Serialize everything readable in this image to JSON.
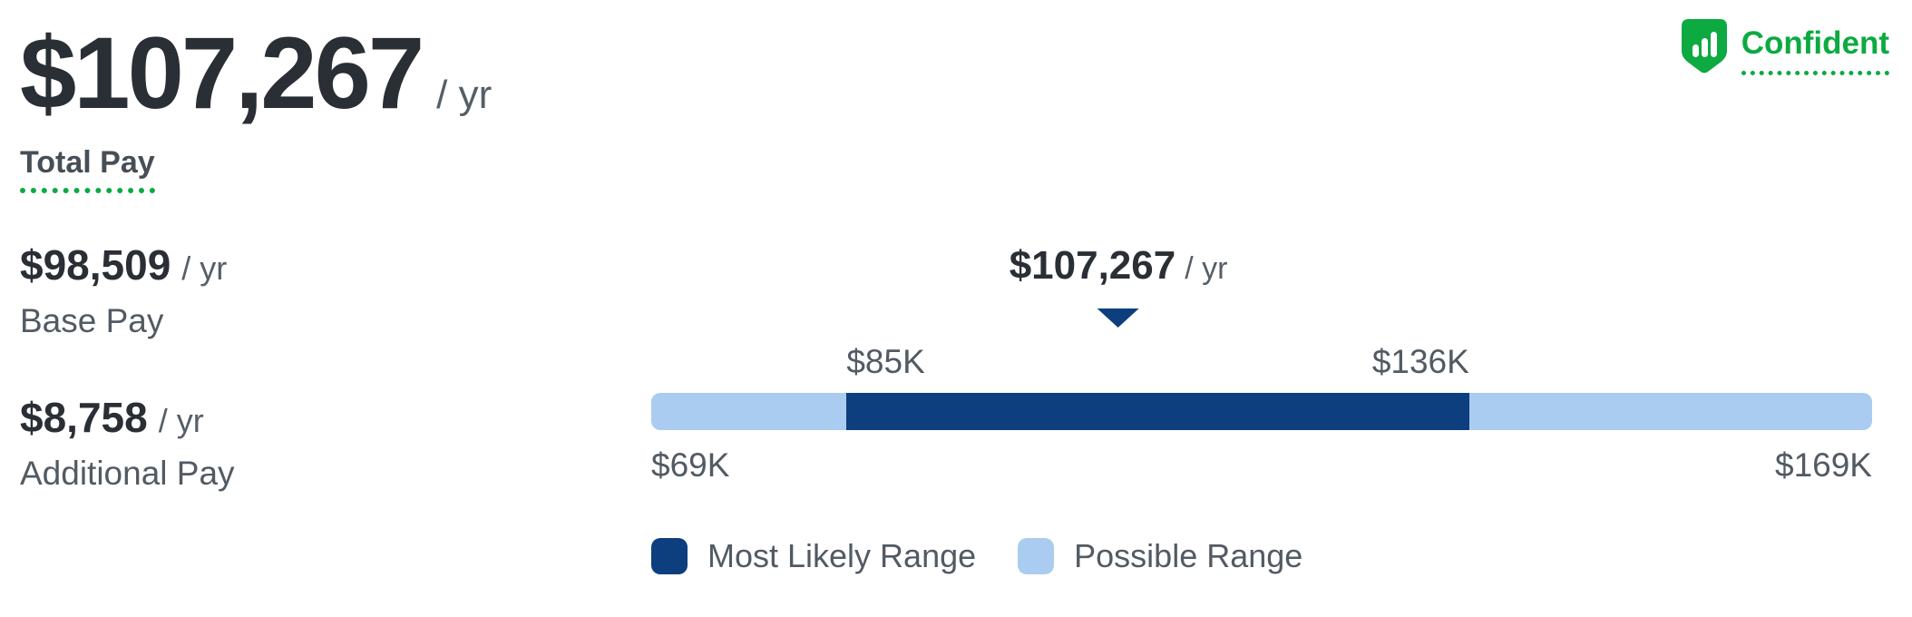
{
  "summary": {
    "total": {
      "amount": "$107,267",
      "suffix": "/ yr",
      "label": "Total Pay"
    },
    "breakdown": [
      {
        "amount": "$98,509",
        "suffix": "/ yr",
        "label": "Base Pay"
      },
      {
        "amount": "$8,758",
        "suffix": "/ yr",
        "label": "Additional Pay"
      }
    ]
  },
  "confidence": {
    "label": "Confident",
    "icon": "shield-bar-chart-icon",
    "color": "#0caa41"
  },
  "chart_data": {
    "type": "range-bar",
    "estimate": {
      "amount": "$107,267",
      "suffix": "/ yr",
      "value": 107267
    },
    "possible_range": {
      "min": 69000,
      "max": 169000,
      "min_label": "$69K",
      "max_label": "$169K"
    },
    "most_likely_range": {
      "min": 85000,
      "max": 136000,
      "min_label": "$85K",
      "max_label": "$136K"
    },
    "legend": [
      {
        "label": "Most Likely Range",
        "color": "#0d3f7e"
      },
      {
        "label": "Possible Range",
        "color": "#abccf1"
      }
    ],
    "colors": {
      "possible_bar": "#abccf1",
      "most_likely_bar": "#0d3f7e",
      "marker_triangle": "#0d3f7e",
      "text_dark": "#2a2e35",
      "text_gray": "#525a63",
      "accent_green": "#0caa41"
    }
  }
}
